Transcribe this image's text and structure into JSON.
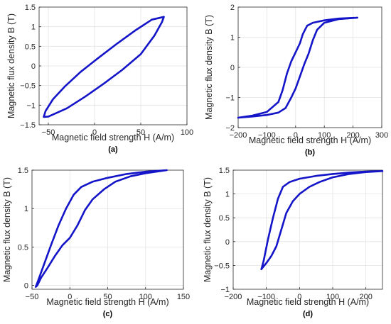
{
  "figure": {
    "panel_labels": [
      "(a)",
      "(b)",
      "(c)",
      "(d)"
    ]
  },
  "colors": {
    "curve": "#1414c8",
    "axis": "#262626",
    "grid": "#e3e3e3"
  },
  "chart_data": [
    {
      "type": "line",
      "panel": "(a)",
      "xlabel": "Magnetic field strength H (A/m)",
      "ylabel": "Magnetic flux density B (T)",
      "xlim": [
        -60,
        100
      ],
      "ylim": [
        -1.5,
        1.5
      ],
      "xticks": [
        -50,
        0,
        50,
        100
      ],
      "yticks": [
        -1.5,
        -1,
        -0.5,
        0,
        0.5,
        1,
        1.5
      ],
      "grid": true,
      "series": [
        {
          "x": [
            75,
            62,
            45,
            25,
            5,
            -15,
            -32,
            -45,
            -53,
            -55,
            -50,
            -30,
            -10,
            10,
            30,
            50,
            65,
            73,
            75
          ],
          "y": [
            1.25,
            1.18,
            0.92,
            0.58,
            0.22,
            -0.15,
            -0.52,
            -0.85,
            -1.15,
            -1.3,
            -1.29,
            -1.08,
            -0.78,
            -0.45,
            -0.1,
            0.3,
            0.78,
            1.12,
            1.25
          ]
        }
      ]
    },
    {
      "type": "line",
      "panel": "(b)",
      "xlabel": "Magnetic field strength H (A/m)",
      "ylabel": "Magnetic flux density B (T)",
      "xlim": [
        -200,
        300
      ],
      "ylim": [
        -2,
        2
      ],
      "xticks": [
        -200,
        -100,
        0,
        100,
        200,
        300
      ],
      "yticks": [
        -2,
        -1,
        0,
        1,
        2
      ],
      "grid": true,
      "series": [
        {
          "x": [
            215,
            150,
            100,
            60,
            40,
            25,
            15,
            0,
            -15,
            -30,
            -45,
            -60,
            -100,
            -150,
            -200,
            -150,
            -100,
            -60,
            -35,
            -15,
            0,
            15,
            30,
            45,
            60,
            75,
            100,
            150,
            215
          ],
          "y": [
            1.65,
            1.62,
            1.56,
            1.48,
            1.38,
            1.1,
            0.8,
            0.5,
            0.2,
            -0.2,
            -0.75,
            -1.15,
            -1.48,
            -1.6,
            -1.67,
            -1.63,
            -1.58,
            -1.5,
            -1.35,
            -1.0,
            -0.7,
            -0.3,
            0.1,
            0.45,
            0.9,
            1.25,
            1.48,
            1.6,
            1.65
          ]
        }
      ]
    },
    {
      "type": "line",
      "panel": "(c)",
      "xlabel": "Magnetic field strength H (A/m)",
      "ylabel": "Magnetic flux density B (T)",
      "xlim": [
        -50,
        150
      ],
      "ylim": [
        -0.05,
        1.5
      ],
      "xticks": [
        -50,
        0,
        50,
        100,
        150
      ],
      "yticks": [
        0,
        0.5,
        1,
        1.5
      ],
      "grid": true,
      "series": [
        {
          "x": [
            128,
            100,
            75,
            50,
            30,
            15,
            5,
            -5,
            -15,
            -25,
            -35,
            -42,
            -45,
            -43,
            -38,
            -30,
            -20,
            -10,
            0,
            10,
            20,
            30,
            45,
            60,
            80,
            100,
            128
          ],
          "y": [
            1.5,
            1.48,
            1.45,
            1.4,
            1.35,
            1.28,
            1.18,
            1.0,
            0.78,
            0.52,
            0.25,
            0.06,
            -0.02,
            0.0,
            0.1,
            0.22,
            0.38,
            0.52,
            0.62,
            0.78,
            0.98,
            1.12,
            1.25,
            1.35,
            1.42,
            1.46,
            1.5
          ]
        }
      ]
    },
    {
      "type": "line",
      "panel": "(d)",
      "xlabel": "Magnetic field strength H (A/m)",
      "ylabel": "Magnetic flux density B (T)",
      "xlim": [
        -200,
        250
      ],
      "ylim": [
        -1,
        1.5
      ],
      "xticks": [
        -200,
        -100,
        0,
        100,
        200
      ],
      "yticks": [
        -1,
        -0.5,
        0,
        0.5,
        1,
        1.5
      ],
      "grid": true,
      "series": [
        {
          "x": [
            250,
            200,
            150,
            100,
            50,
            0,
            -30,
            -50,
            -65,
            -80,
            -95,
            -108,
            -115,
            -112,
            -100,
            -85,
            -70,
            -55,
            -40,
            -20,
            0,
            30,
            60,
            100,
            150,
            200,
            250
          ],
          "y": [
            1.48,
            1.47,
            1.45,
            1.42,
            1.38,
            1.32,
            1.25,
            1.15,
            0.9,
            0.5,
            0.05,
            -0.4,
            -0.58,
            -0.55,
            -0.45,
            -0.3,
            -0.1,
            0.25,
            0.6,
            0.85,
            1.0,
            1.15,
            1.25,
            1.35,
            1.42,
            1.46,
            1.48
          ]
        }
      ]
    }
  ]
}
